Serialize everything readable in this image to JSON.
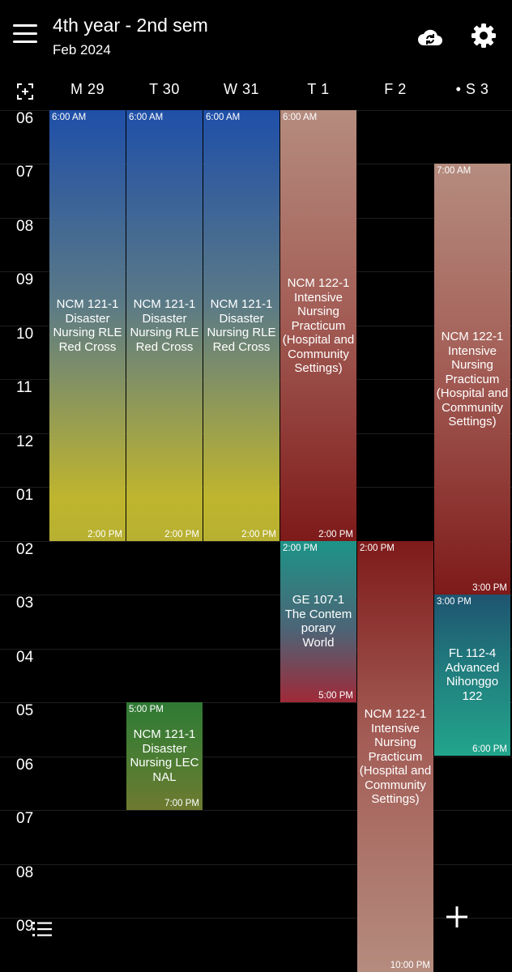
{
  "header": {
    "title": "4th year - 2nd sem",
    "subtitle": "Feb 2024"
  },
  "days": [
    "M 29",
    "T 30",
    "W 31",
    "T 1",
    "F 2",
    "• S 3"
  ],
  "hours": [
    "06",
    "07",
    "08",
    "09",
    "10",
    "11",
    "12",
    "01",
    "02",
    "03",
    "04",
    "05",
    "06",
    "07",
    "08",
    "09"
  ],
  "events": [
    {
      "start": "6:00 AM",
      "end": "2:00 PM",
      "title": "NCM 121-1 Disaster Nursing RLE Red Cross",
      "title_lines": [
        "NCM 121-1",
        "Disaster",
        "Nursing RLE",
        "Red Cross"
      ]
    },
    {
      "start": "6:00 AM",
      "end": "2:00 PM",
      "title": "NCM 121-1 Disaster Nursing RLE Red Cross",
      "title_lines": [
        "NCM 121-1",
        "Disaster",
        "Nursing RLE",
        "Red Cross"
      ]
    },
    {
      "start": "6:00 AM",
      "end": "2:00 PM",
      "title": "NCM 121-1 Disaster Nursing RLE Red Cross",
      "title_lines": [
        "NCM 121-1",
        "Disaster",
        "Nursing RLE",
        "Red Cross"
      ]
    },
    {
      "start": "6:00 AM",
      "end": "2:00 PM",
      "title": "NCM 122-1 Intensive Nursing Practicum (Hospital and Community Settings)",
      "title_lines": [
        "NCM 122-1",
        "Intensive",
        "Nursing",
        "Practicum",
        "(Hospital and",
        "Community",
        "Settings)"
      ]
    },
    {
      "start": "7:00 AM",
      "end": "3:00 PM",
      "title": "NCM 122-1 Intensive Nursing Practicum (Hospital and Community Settings)",
      "title_lines": [
        "NCM 122-1",
        "Intensive",
        "Nursing",
        "Practicum",
        "(Hospital and",
        "Community",
        "Settings)"
      ]
    },
    {
      "start": "2:00 PM",
      "end": "5:00 PM",
      "title": "GE 107-1 The Contemporary World",
      "title_lines": [
        "GE 107-1",
        "The Contem",
        "porary",
        "World"
      ]
    },
    {
      "start": "2:00 PM",
      "end": "10:00 PM",
      "title": "NCM 122-1 Intensive Nursing Practicum (Hospital and Community Settings)",
      "title_lines": [
        "NCM 122-1",
        "Intensive",
        "Nursing",
        "Practicum",
        "(Hospital and",
        "Community",
        "Settings)"
      ]
    },
    {
      "start": "3:00 PM",
      "end": "6:00 PM",
      "title": "FL 112-4 Advanced Nihonggo 122",
      "title_lines": [
        "FL 112-4",
        "Advanced",
        "Nihonggo",
        "122"
      ]
    },
    {
      "start": "5:00 PM",
      "end": "7:00 PM",
      "title": "NCM 121-1 Disaster Nursing LEC NAL",
      "title_lines": [
        "NCM 121-1",
        "Disaster",
        "Nursing LEC",
        "NAL"
      ]
    }
  ],
  "icons": {
    "menu": "menu-icon",
    "sync": "cloud-sync-icon",
    "settings": "gear-icon",
    "today": "jump-to-today-icon",
    "list": "list-icon",
    "add": "plus-icon"
  },
  "colors": {
    "background": "#000000",
    "text": "#ffffff",
    "rle_top": "#1f4fa8",
    "rle_bottom": "#bfb52e",
    "practicum_top": "#b58c7f",
    "practicum_bottom": "#7e1a1a",
    "ge_top": "#1d9488",
    "ge_bottom": "#a02a38",
    "fl_top": "#1e5470",
    "fl_bottom": "#22a58c",
    "lec_top": "#2f7a34",
    "lec_bottom": "#6e7a30"
  }
}
